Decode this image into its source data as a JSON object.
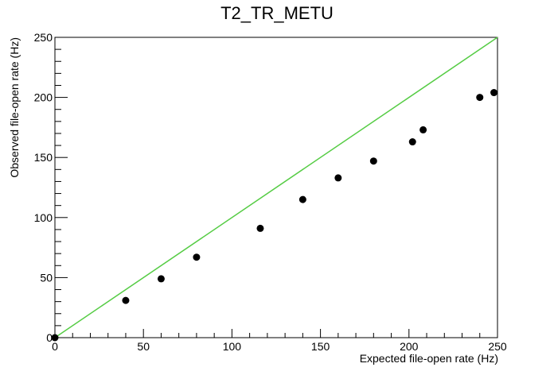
{
  "chart_data": {
    "type": "scatter",
    "title": "T2_TR_METU",
    "x_label": "Expected file-open rate (Hz)",
    "y_label": "Observed file-open rate (Hz)",
    "series": [
      {
        "color": "#000000",
        "x": [
          0,
          40,
          60,
          80,
          116,
          140,
          160,
          180,
          202,
          208,
          240,
          248
        ],
        "values": [
          0,
          31,
          49,
          67,
          91,
          115,
          133,
          147,
          163,
          173,
          200,
          204
        ]
      }
    ],
    "reference_line": {
      "color": "#55cc44",
      "x": [
        0,
        250
      ],
      "values": [
        0,
        250
      ]
    },
    "xlim": [
      0,
      250
    ],
    "ylim": [
      0,
      250
    ],
    "xticks": [
      0,
      50,
      100,
      150,
      200,
      250
    ],
    "yticks": [
      0,
      50,
      100,
      150,
      200,
      250
    ],
    "xminorticks": [
      10,
      20,
      30,
      40,
      60,
      70,
      80,
      90,
      110,
      120,
      130,
      140,
      160,
      170,
      180,
      190,
      210,
      220,
      230,
      240
    ],
    "yminorticks": [
      10,
      20,
      30,
      40,
      60,
      70,
      80,
      90,
      110,
      120,
      130,
      140,
      160,
      170,
      180,
      190,
      210,
      220,
      230,
      240
    ]
  }
}
